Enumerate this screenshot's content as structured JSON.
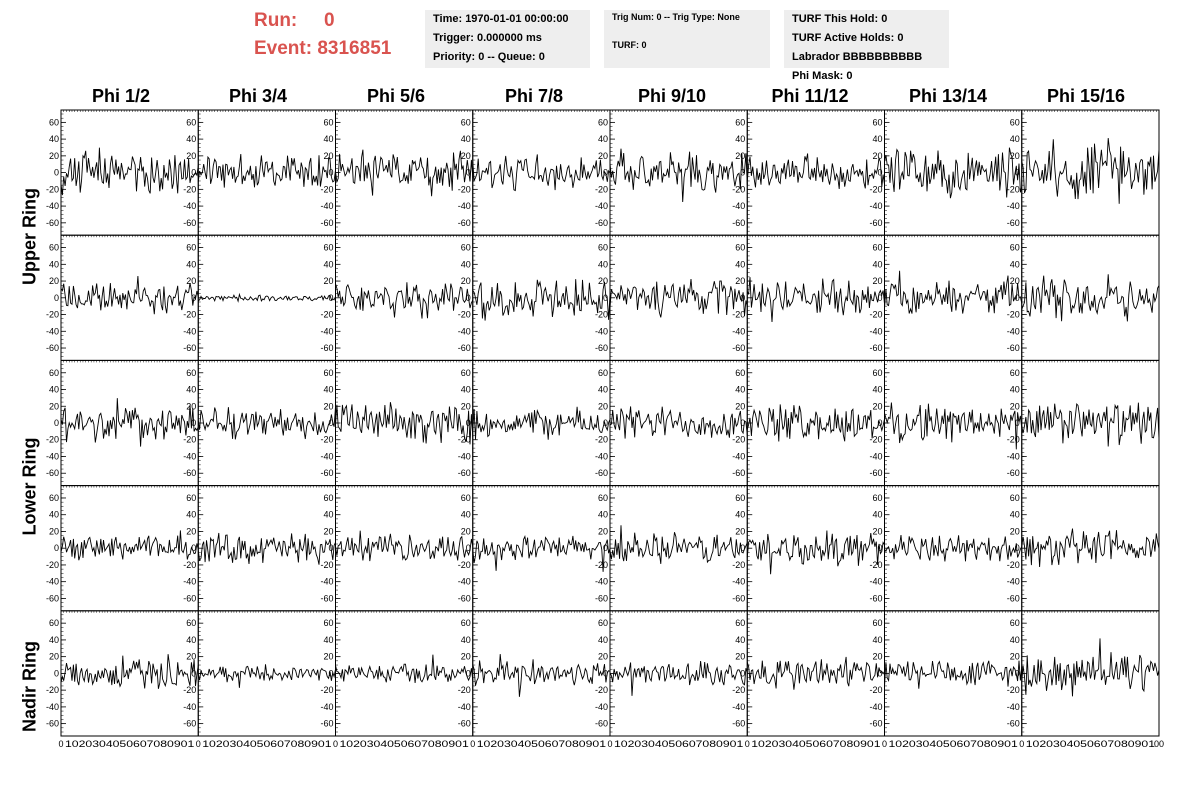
{
  "header": {
    "run_label": "Run:",
    "run_value": "0",
    "event_label": "Event:",
    "event_value": "8316851",
    "accent_color": "#d9534f"
  },
  "info_time": {
    "time": "Time: 1970-01-01 00:00:00",
    "trigger": "Trigger: 0.000000 ms",
    "priority": "Priority: 0 -- Queue: 0"
  },
  "info_trig": {
    "trig": "Trig Num: 0 -- Trig Type: None",
    "turf": "TURF: 0"
  },
  "info_turf": {
    "hold": "TURF This Hold: 0",
    "active": "TURF Active Holds: 0",
    "labrador": "Labrador BBBBBBBBBB",
    "phimask": "Phi Mask: 0"
  },
  "columns": [
    "Phi 1/2",
    "Phi 3/4",
    "Phi 5/6",
    "Phi 7/8",
    "Phi 9/10",
    "Phi 11/12",
    "Phi 13/14",
    "Phi 15/16"
  ],
  "row_labels": [
    {
      "label": "Upper Ring"
    },
    {
      "label": "Lower Ring"
    },
    {
      "label": "Nadir Ring"
    }
  ],
  "chart_data": {
    "type": "line",
    "grid": false,
    "xlim": [
      0,
      100
    ],
    "ylim": [
      -70,
      70
    ],
    "y_ticks": [
      "60",
      "40",
      "20",
      "0",
      "-20",
      "-40",
      "-60"
    ],
    "x_ticks": [
      "0",
      "10",
      "20",
      "30",
      "40",
      "50",
      "60",
      "70",
      "80",
      "90",
      "100"
    ],
    "x_tick_row_text": [
      "0",
      "1020304050607080901",
      "0",
      "1020304050607080901",
      "0",
      "1020304050607080901",
      "0",
      "1020304050607080901",
      "0",
      "1020304050607080901",
      "0",
      "1020304050607080901",
      "0",
      "1020304050607080901",
      "0",
      "1020304050607080901",
      "00"
    ],
    "rows": 5,
    "cols": 8,
    "samples_per_trace": 100,
    "trace_amplitude_rows": [
      [
        25,
        20,
        25,
        20,
        22,
        18,
        28,
        32
      ],
      [
        18,
        4,
        20,
        22,
        22,
        20,
        20,
        25
      ],
      [
        22,
        18,
        22,
        18,
        20,
        22,
        22,
        25
      ],
      [
        15,
        18,
        15,
        15,
        18,
        20,
        15,
        22
      ],
      [
        18,
        8,
        12,
        15,
        15,
        20,
        18,
        22
      ]
    ]
  }
}
